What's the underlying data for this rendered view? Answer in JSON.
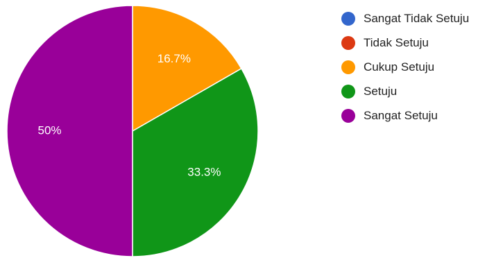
{
  "chart_data": {
    "type": "pie",
    "title": "",
    "legend_position": "right",
    "categories": [
      "Sangat Tidak Setuju",
      "Tidak Setuju",
      "Cukup Setuju",
      "Setuju",
      "Sangat Setuju"
    ],
    "values": [
      0,
      0,
      16.7,
      33.3,
      50
    ],
    "labels": [
      "",
      "",
      "16.7%",
      "33.3%",
      "50%"
    ],
    "colors": [
      "#3366cc",
      "#dc3912",
      "#ff9900",
      "#109618",
      "#990099"
    ],
    "start_angle_deg": 90,
    "direction": "clockwise"
  }
}
